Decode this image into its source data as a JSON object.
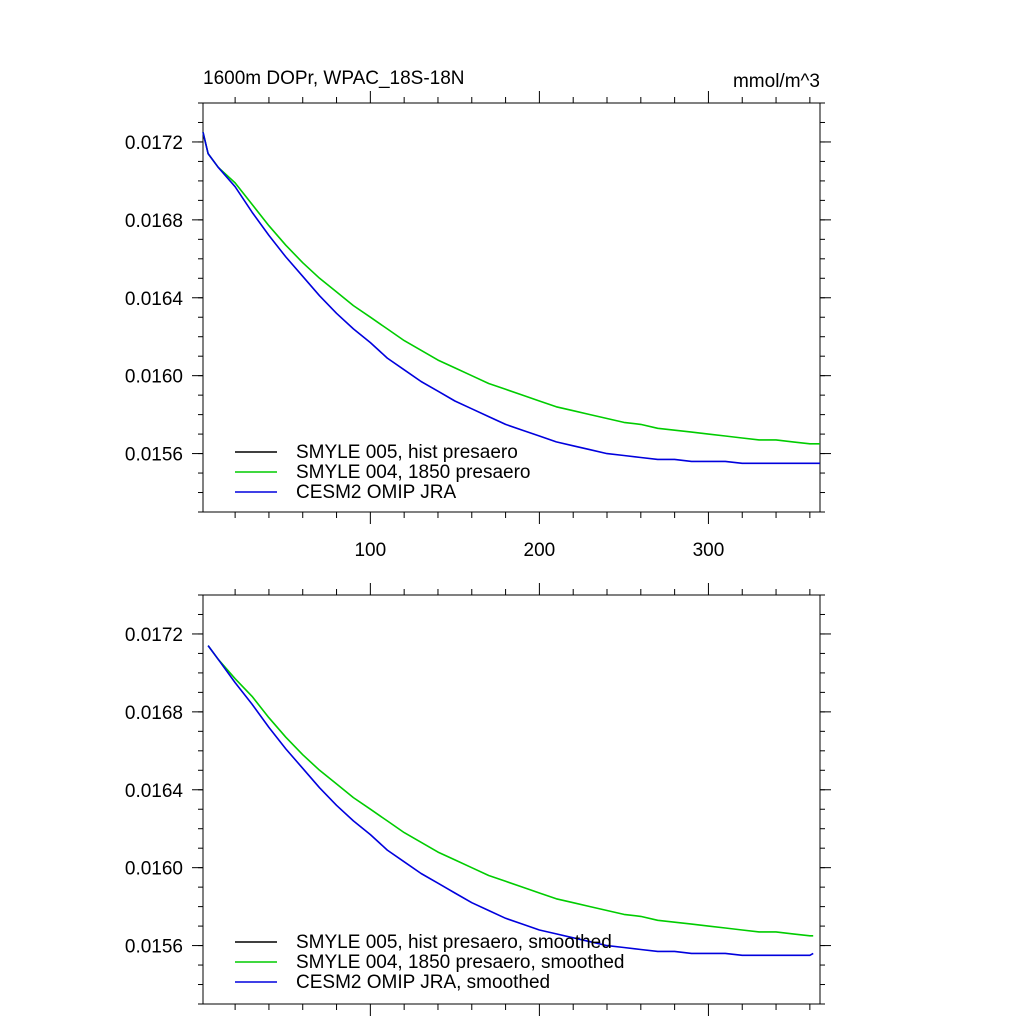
{
  "chart_data": [
    {
      "type": "line",
      "title": "1600m DOPr, WPAC_18S-18N",
      "units": "mmol/m^3",
      "xlim": [
        1,
        366
      ],
      "ylim": [
        0.0153,
        0.0174
      ],
      "yticks": [
        0.0156,
        0.016,
        0.0164,
        0.0168,
        0.0172
      ],
      "ytick_labels": [
        "0.0156",
        "0.0160",
        "0.0164",
        "0.0168",
        "0.0172"
      ],
      "xticks": [
        100,
        200,
        300
      ],
      "xtick_labels": [
        "100",
        "200",
        "300"
      ],
      "legend_position": "bottom-left",
      "series": [
        {
          "name": "SMYLE 005, hist presaero",
          "color": "#000000",
          "x": [],
          "y": []
        },
        {
          "name": "SMYLE 004, 1850 presaero",
          "color": "#00cc00",
          "x": [
            1,
            4,
            10,
            20,
            30,
            40,
            50,
            60,
            70,
            80,
            90,
            100,
            110,
            120,
            130,
            140,
            150,
            160,
            170,
            180,
            190,
            200,
            210,
            220,
            230,
            240,
            250,
            260,
            270,
            280,
            290,
            300,
            310,
            320,
            330,
            340,
            350,
            360,
            366
          ],
          "y": [
            0.01725,
            0.01714,
            0.01707,
            0.01699,
            0.01688,
            0.01677,
            0.01667,
            0.01658,
            0.0165,
            0.01643,
            0.01636,
            0.0163,
            0.01624,
            0.01618,
            0.01613,
            0.01608,
            0.01604,
            0.016,
            0.01596,
            0.01593,
            0.0159,
            0.01587,
            0.01584,
            0.01582,
            0.0158,
            0.01578,
            0.01576,
            0.01575,
            0.01573,
            0.01572,
            0.01571,
            0.0157,
            0.01569,
            0.01568,
            0.01567,
            0.01567,
            0.01566,
            0.01565,
            0.01565
          ]
        },
        {
          "name": "CESM2 OMIP JRA",
          "color": "#0000dd",
          "x": [
            1,
            4,
            10,
            20,
            30,
            40,
            50,
            60,
            70,
            80,
            90,
            100,
            110,
            120,
            130,
            140,
            150,
            160,
            170,
            180,
            190,
            200,
            210,
            220,
            230,
            240,
            250,
            260,
            270,
            280,
            290,
            300,
            310,
            320,
            330,
            340,
            350,
            360,
            366
          ],
          "y": [
            0.01725,
            0.01714,
            0.01707,
            0.01697,
            0.01684,
            0.01672,
            0.01661,
            0.01651,
            0.01641,
            0.01632,
            0.01624,
            0.01617,
            0.01609,
            0.01603,
            0.01597,
            0.01592,
            0.01587,
            0.01583,
            0.01579,
            0.01575,
            0.01572,
            0.01569,
            0.01566,
            0.01564,
            0.01562,
            0.0156,
            0.01559,
            0.01558,
            0.01557,
            0.01557,
            0.01556,
            0.01556,
            0.01556,
            0.01555,
            0.01555,
            0.01555,
            0.01555,
            0.01555,
            0.01555
          ]
        }
      ]
    },
    {
      "type": "line",
      "title": "",
      "xlim": [
        1,
        366
      ],
      "ylim": [
        0.0153,
        0.0174
      ],
      "yticks": [
        0.0156,
        0.016,
        0.0164,
        0.0168,
        0.0172
      ],
      "ytick_labels": [
        "0.0156",
        "0.0160",
        "0.0164",
        "0.0168",
        "0.0172"
      ],
      "xticks": [
        100,
        200,
        300
      ],
      "xtick_labels": [],
      "legend_position": "bottom-left",
      "series": [
        {
          "name": "SMYLE 005, hist presaero, smoothed",
          "color": "#000000",
          "x": [],
          "y": []
        },
        {
          "name": "SMYLE 004, 1850 presaero, smoothed",
          "color": "#00cc00",
          "x": [
            4,
            10,
            20,
            30,
            40,
            50,
            60,
            70,
            80,
            90,
            100,
            110,
            120,
            130,
            140,
            150,
            160,
            170,
            180,
            190,
            200,
            210,
            220,
            230,
            240,
            250,
            260,
            270,
            280,
            290,
            300,
            310,
            320,
            330,
            340,
            350,
            360,
            362
          ],
          "y": [
            0.01714,
            0.01707,
            0.01697,
            0.01688,
            0.01677,
            0.01667,
            0.01658,
            0.0165,
            0.01643,
            0.01636,
            0.0163,
            0.01624,
            0.01618,
            0.01613,
            0.01608,
            0.01604,
            0.016,
            0.01596,
            0.01593,
            0.0159,
            0.01587,
            0.01584,
            0.01582,
            0.0158,
            0.01578,
            0.01576,
            0.01575,
            0.01573,
            0.01572,
            0.01571,
            0.0157,
            0.01569,
            0.01568,
            0.01567,
            0.01567,
            0.01566,
            0.01565,
            0.01565
          ]
        },
        {
          "name": "CESM2 OMIP JRA, smoothed",
          "color": "#0000dd",
          "x": [
            4,
            10,
            20,
            30,
            40,
            50,
            60,
            70,
            80,
            90,
            100,
            110,
            120,
            130,
            140,
            150,
            160,
            170,
            180,
            190,
            200,
            210,
            220,
            230,
            240,
            250,
            260,
            270,
            280,
            290,
            300,
            310,
            320,
            330,
            340,
            350,
            360,
            362
          ],
          "y": [
            0.01714,
            0.01707,
            0.01695,
            0.01684,
            0.01672,
            0.01661,
            0.01651,
            0.01641,
            0.01632,
            0.01624,
            0.01617,
            0.01609,
            0.01603,
            0.01597,
            0.01592,
            0.01587,
            0.01582,
            0.01578,
            0.01574,
            0.01571,
            0.01568,
            0.01566,
            0.01564,
            0.01562,
            0.0156,
            0.01559,
            0.01558,
            0.01557,
            0.01557,
            0.01556,
            0.01556,
            0.01556,
            0.01555,
            0.01555,
            0.01555,
            0.01555,
            0.01555,
            0.01556
          ]
        }
      ]
    }
  ]
}
